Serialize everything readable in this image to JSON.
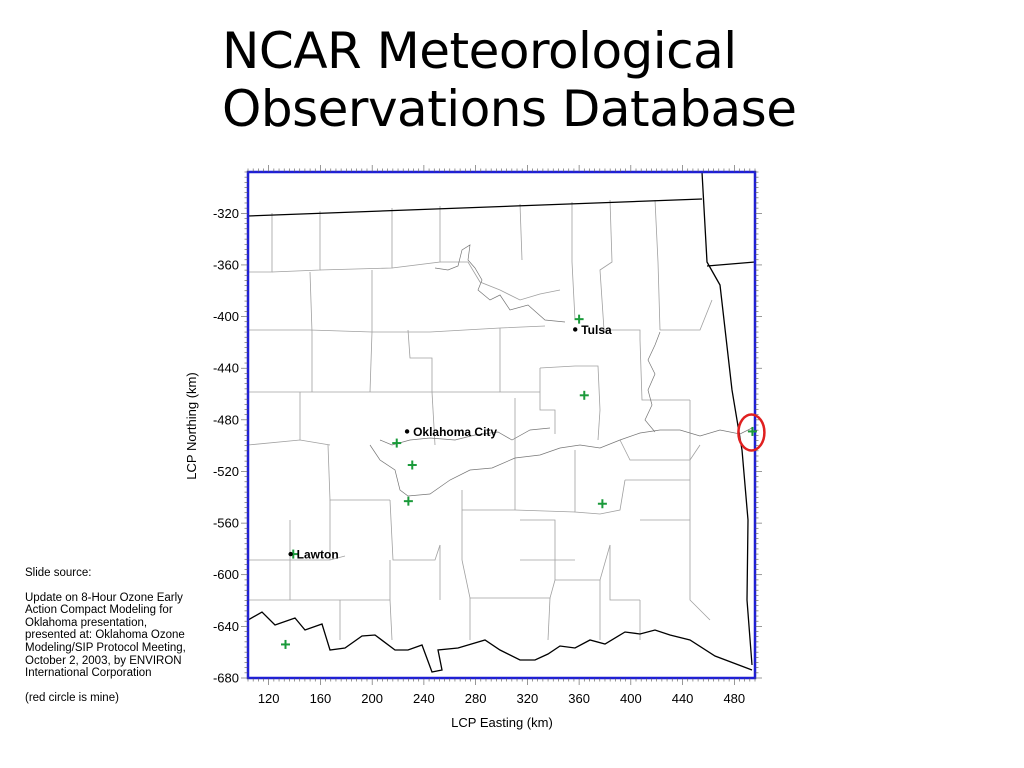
{
  "title": {
    "line1": "NCAR Meteorological",
    "line2": "Observations Database"
  },
  "map": {
    "x_axis": {
      "label": "LCP Easting (km)",
      "range": [
        104,
        496
      ],
      "ticks": [
        120,
        160,
        200,
        240,
        280,
        320,
        360,
        400,
        440,
        480
      ]
    },
    "y_axis": {
      "label": "LCP Northing (km)",
      "range": [
        -680,
        -288
      ],
      "ticks": [
        -320,
        -360,
        -400,
        -440,
        -480,
        -520,
        -560,
        -600,
        -640,
        -680
      ]
    },
    "cities": [
      {
        "name": "Tulsa",
        "x": 357,
        "y": -410
      },
      {
        "name": "Oklahoma City",
        "x": 227,
        "y": -489
      },
      {
        "name": "Lawton",
        "x": 137,
        "y": -584
      }
    ],
    "stations": [
      {
        "x": 360,
        "y": -402
      },
      {
        "x": 364,
        "y": -461
      },
      {
        "x": 219,
        "y": -498
      },
      {
        "x": 231,
        "y": -515
      },
      {
        "x": 228,
        "y": -543
      },
      {
        "x": 378,
        "y": -545
      },
      {
        "x": 139,
        "y": -584
      },
      {
        "x": 133,
        "y": -654
      },
      {
        "x": 494,
        "y": -489
      }
    ],
    "highlight": {
      "x": 494,
      "y": -489,
      "color": "#e02020"
    },
    "colors": {
      "frame": "#1f1fd6",
      "station": "#1a9a3a",
      "county_line": "#9a9a9a",
      "state_line": "#000000"
    }
  },
  "source_note": {
    "line1": "Slide source:",
    "body": "Update on 8-Hour Ozone Early Action Compact Modeling for Oklahoma presentation, presented at: Oklahoma Ozone Modeling/SIP Protocol Meeting, October 2, 2003, by ENVIRON International Corporation",
    "footnote": "(red circle is mine)"
  }
}
